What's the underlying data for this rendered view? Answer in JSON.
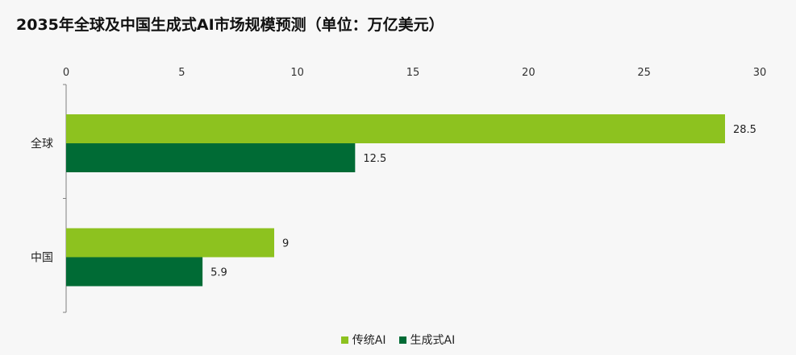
{
  "chart_data": {
    "type": "bar",
    "orientation": "horizontal",
    "title": "2035年全球及中国生成式AI市场规模预测（单位：万亿美元）",
    "categories": [
      "全球",
      "中国"
    ],
    "series": [
      {
        "name": "传统AI",
        "values": [
          28.5,
          9
        ],
        "color": "#8dc21f"
      },
      {
        "name": "生成式AI",
        "values": [
          12.5,
          5.9
        ],
        "color": "#006b35"
      }
    ],
    "xlim": [
      0,
      30
    ],
    "x_ticks": [
      0,
      5,
      10,
      15,
      20,
      25,
      30
    ],
    "x_axis_position": "top",
    "grid": false,
    "legend_position": "bottom-center",
    "data_labels": [
      "28.5",
      "12.5",
      "9",
      "5.9"
    ]
  }
}
